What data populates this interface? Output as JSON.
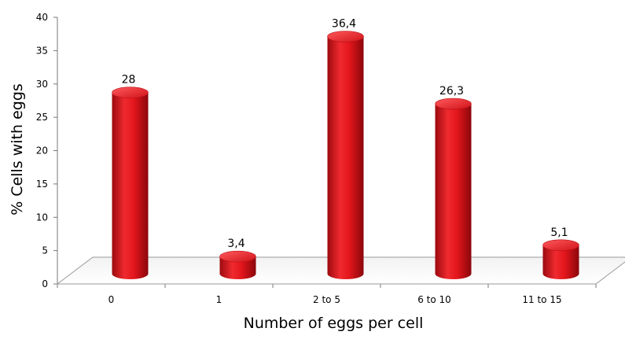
{
  "chart_data": {
    "type": "bar",
    "style": "3d-cylinder",
    "categories": [
      "0",
      "1",
      "2 to 5",
      "6 to 10",
      "11 to 15"
    ],
    "values": [
      28,
      3.4,
      36.4,
      26.3,
      5.1
    ],
    "data_labels": [
      "28",
      "3,4",
      "36,4",
      "26,3",
      "5,1"
    ],
    "xlabel": "Number of eggs per cell",
    "ylabel": "% Cells with eggs",
    "ylim": [
      0,
      40
    ],
    "yticks": [
      "0",
      "5",
      "10",
      "15",
      "20",
      "25",
      "30",
      "35",
      "40"
    ],
    "grid": false,
    "legend": "none",
    "bar_color": "#e3161c"
  }
}
